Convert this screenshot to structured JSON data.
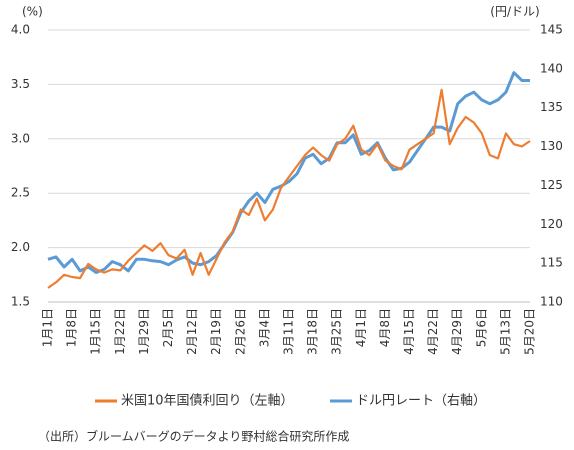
{
  "chart_data": {
    "type": "line",
    "y_unit": "(%)",
    "y2_unit": "(円/ドル)",
    "categories": [
      "1月1日",
      null,
      null,
      "1月8日",
      null,
      null,
      "1月15日",
      null,
      null,
      "1月22日",
      null,
      null,
      "1月29日",
      null,
      null,
      "2月5日",
      null,
      null,
      "2月12日",
      null,
      null,
      "2月19日",
      null,
      null,
      "2月26日",
      null,
      null,
      "3月4日",
      null,
      null,
      "3月11日",
      null,
      null,
      "3月18日",
      null,
      null,
      "3月25日",
      null,
      null,
      "4月1日",
      null,
      null,
      "4月8日",
      null,
      null,
      "4月15日",
      null,
      null,
      "4月22日",
      null,
      null,
      "4月29日",
      null,
      null,
      "5月6日",
      null,
      null,
      "5月13日",
      null,
      null,
      "5月20日"
    ],
    "series": [
      {
        "name": "米国10年国債利回り（左軸）",
        "color": "#ed7d31",
        "axis": "y",
        "values": [
          1.63,
          1.68,
          1.75,
          1.73,
          1.72,
          1.85,
          1.8,
          1.77,
          1.8,
          1.79,
          1.88,
          1.95,
          2.02,
          1.97,
          2.04,
          1.93,
          1.9,
          1.98,
          1.75,
          1.95,
          1.75,
          1.9,
          2.05,
          2.15,
          2.35,
          2.3,
          2.45,
          2.25,
          2.35,
          2.55,
          2.65,
          2.75,
          2.85,
          2.92,
          2.85,
          2.8,
          2.95,
          3.0,
          3.12,
          2.9,
          2.85,
          2.95,
          2.8,
          2.75,
          2.72,
          2.9,
          2.95,
          3.0,
          3.05,
          3.45,
          2.95,
          3.1,
          3.2,
          3.15,
          3.05,
          2.85,
          2.82,
          3.05,
          2.95,
          2.93,
          2.98
        ]
      },
      {
        "name": "ドル円レート（右軸）",
        "color": "#5b9bd5",
        "axis": "y2",
        "values": [
          115.5,
          115.8,
          114.5,
          115.5,
          114.0,
          114.5,
          113.8,
          114.2,
          115.2,
          114.8,
          114.0,
          115.5,
          115.5,
          115.3,
          115.2,
          114.8,
          115.4,
          115.8,
          115.0,
          114.8,
          115.2,
          116.0,
          117.5,
          119.0,
          121.5,
          123.0,
          124.0,
          122.8,
          124.5,
          124.9,
          125.5,
          126.5,
          128.5,
          129.0,
          127.8,
          128.5,
          130.5,
          130.5,
          131.5,
          129.0,
          129.5,
          130.5,
          128.5,
          127.0,
          127.2,
          128.0,
          129.5,
          131.0,
          132.5,
          132.5,
          132.0,
          135.5,
          136.5,
          137.0,
          136.0,
          135.5,
          136.0,
          137.0,
          139.5,
          138.5,
          138.5
        ]
      }
    ],
    "ylim": [
      1.5,
      4.0
    ],
    "yticks": [
      {
        "value": 1.5,
        "label": "1.5"
      },
      {
        "value": 2,
        "label": "2.0"
      },
      {
        "value": 2.5,
        "label": "2.5"
      },
      {
        "value": 3,
        "label": "3.0"
      },
      {
        "value": 3.5,
        "label": "3.5"
      },
      {
        "value": 4,
        "label": "4.0"
      }
    ],
    "y2lim": [
      110,
      145
    ],
    "y2ticks": [
      110,
      115,
      120,
      125,
      130,
      135,
      140,
      145
    ],
    "grid": true,
    "source": "（出所）ブルームバーグのデータより野村総合研究所作成"
  }
}
